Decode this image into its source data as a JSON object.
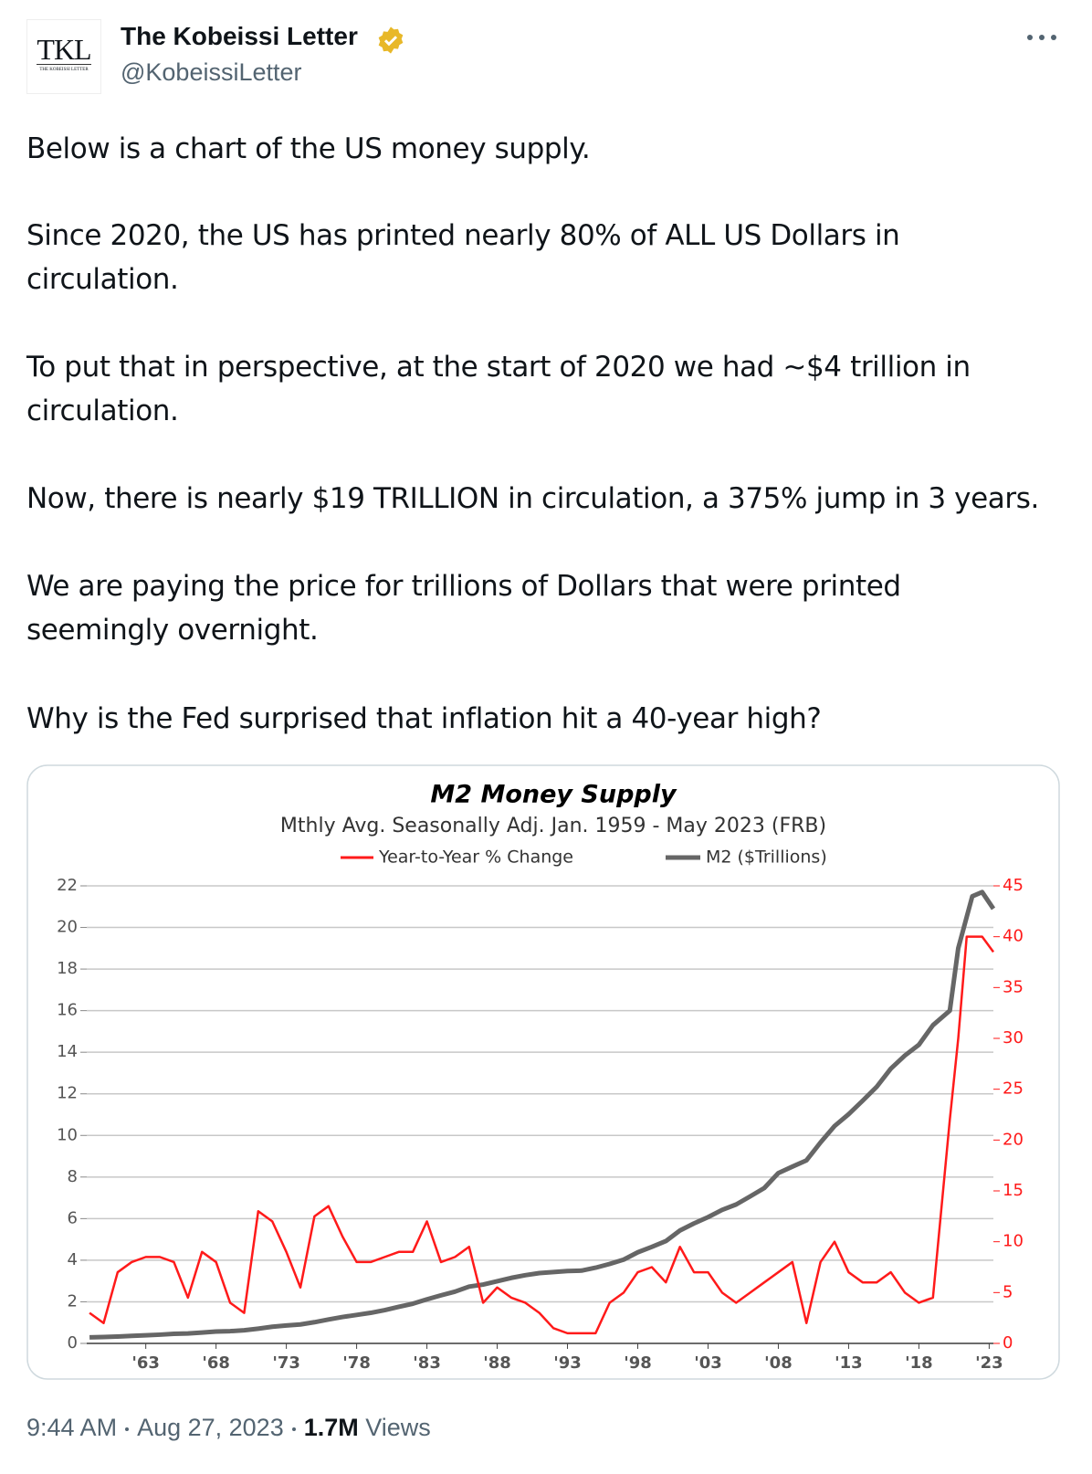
{
  "header": {
    "logo": {
      "text": "TKL",
      "subtext": "THE KOBEISSI LETTER"
    },
    "name": "The Kobeissi Letter",
    "handle": "@KobeissiLetter"
  },
  "paragraphs": [
    [
      "Below is a chart of the US money supply."
    ],
    [
      "Since 2020, the US has printed nearly 80% of ALL US Dollars in",
      "circulation."
    ],
    [
      "To put that in perspective, at the start of 2020 we had ~$4 trillion in",
      "circulation."
    ],
    [
      "Now, there is nearly $19 TRILLION in circulation, a 375% jump in 3 years."
    ],
    [
      "We are paying the price for trillions of Dollars that were printed",
      "seemingly overnight."
    ],
    [
      "Why is the Fed surprised that inflation hit a 40-year high?"
    ]
  ],
  "chart_data": {
    "type": "line",
    "title": "M2 Money Supply",
    "subtitle": "Mthly Avg. Seasonally Adj. Jan. 1959 - May 2023  (FRB)",
    "x": [
      1959,
      1960,
      1961,
      1962,
      1963,
      1964,
      1965,
      1966,
      1967,
      1968,
      1969,
      1970,
      1971,
      1972,
      1973,
      1974,
      1975,
      1976,
      1977,
      1978,
      1979,
      1980,
      1981,
      1982,
      1983,
      1984,
      1985,
      1986,
      1987,
      1988,
      1989,
      1990,
      1991,
      1992,
      1993,
      1994,
      1995,
      1996,
      1997,
      1998,
      1999,
      2000,
      2001,
      2002,
      2003,
      2004,
      2005,
      2006,
      2007,
      2008,
      2009,
      2010,
      2011,
      2012,
      2013,
      2014,
      2015,
      2016,
      2017,
      2018,
      2019,
      2020.2,
      2020.8,
      2021.4,
      2021.8,
      2022.5,
      2023.3
    ],
    "series": [
      {
        "name": "Year-to-Year % Change",
        "color": "#ff1a1a",
        "axis": "y2",
        "values": [
          3,
          2,
          7,
          8,
          8.5,
          8.5,
          8,
          4.5,
          9,
          8,
          4,
          3,
          13,
          12,
          9,
          5.5,
          12.5,
          13.5,
          10.5,
          8,
          8,
          8.5,
          9,
          9,
          12,
          8,
          8.5,
          9.5,
          4,
          5.5,
          4.5,
          4,
          3,
          1.5,
          1,
          1,
          1,
          4,
          5,
          7,
          7.5,
          6,
          9.5,
          7,
          7,
          5,
          4,
          5,
          6,
          7,
          8,
          2,
          8,
          10,
          7,
          6,
          6,
          7,
          5,
          4,
          4.5,
          22,
          30,
          40,
          40,
          40,
          38.5
        ]
      },
      {
        "name": "M2 ($Trillions)",
        "color": "#666666",
        "values": [
          0.29,
          0.31,
          0.33,
          0.36,
          0.39,
          0.42,
          0.46,
          0.48,
          0.52,
          0.57,
          0.59,
          0.63,
          0.71,
          0.8,
          0.86,
          0.91,
          1.02,
          1.15,
          1.27,
          1.37,
          1.47,
          1.6,
          1.76,
          1.91,
          2.12,
          2.31,
          2.49,
          2.73,
          2.83,
          2.99,
          3.15,
          3.28,
          3.38,
          3.43,
          3.48,
          3.5,
          3.64,
          3.82,
          4.03,
          4.38,
          4.64,
          4.92,
          5.43,
          5.77,
          6.07,
          6.42,
          6.68,
          7.07,
          7.47,
          8.19,
          8.5,
          8.8,
          9.66,
          10.45,
          11.02,
          11.67,
          12.34,
          13.21,
          13.84,
          14.36,
          15.3,
          16,
          19,
          20.5,
          21.5,
          21.7,
          20.9
        ]
      }
    ],
    "xlim": [
      1958.8,
      2023.3
    ],
    "xticks": [
      {
        "value": 1963,
        "label": "'63"
      },
      {
        "value": 1968,
        "label": "'68"
      },
      {
        "value": 1973,
        "label": "'73"
      },
      {
        "value": 1978,
        "label": "'78"
      },
      {
        "value": 1983,
        "label": "'83"
      },
      {
        "value": 1988,
        "label": "'88"
      },
      {
        "value": 1993,
        "label": "'93"
      },
      {
        "value": 1998,
        "label": "'98"
      },
      {
        "value": 2003,
        "label": "'03"
      },
      {
        "value": 2008,
        "label": "'08"
      },
      {
        "value": 2013,
        "label": "'13"
      },
      {
        "value": 2018,
        "label": "'18"
      },
      {
        "value": 2023,
        "label": "'23"
      }
    ],
    "ylim": [
      0,
      22
    ],
    "yticks": [
      0,
      2,
      4,
      6,
      8,
      10,
      12,
      14,
      16,
      18,
      20,
      22
    ],
    "y2lim": [
      0,
      45
    ],
    "y2ticks": [
      0,
      5,
      10,
      15,
      20,
      25,
      30,
      35,
      40,
      45
    ],
    "grid": true
  },
  "footer": {
    "time": "9:44 AM",
    "date": "Aug 27, 2023",
    "views": "1.7M",
    "views_label": "Views"
  }
}
